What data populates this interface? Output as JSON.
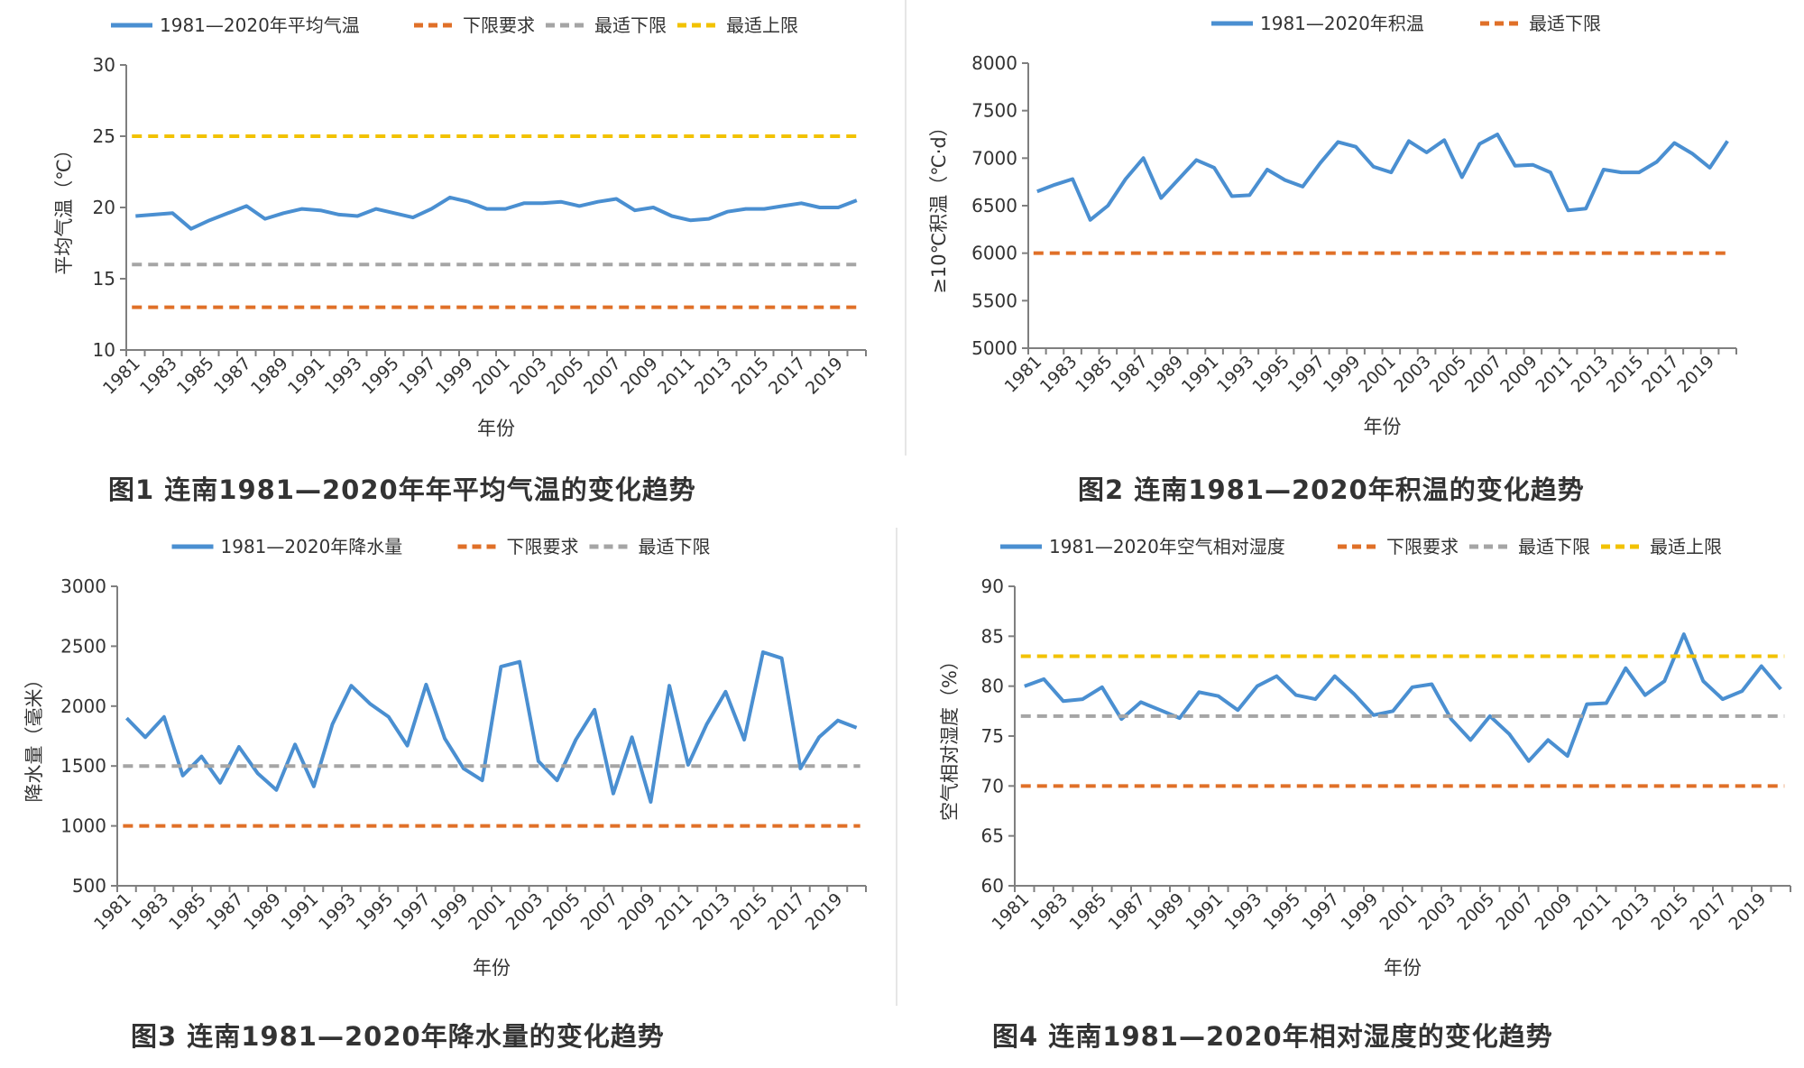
{
  "chart_data": [
    {
      "type": "line",
      "x": [
        "1981",
        "1982",
        "1983",
        "1984",
        "1985",
        "1986",
        "1987",
        "1988",
        "1989",
        "1990",
        "1991",
        "1992",
        "1993",
        "1994",
        "1995",
        "1996",
        "1997",
        "1998",
        "1999",
        "2000",
        "2001",
        "2002",
        "2003",
        "2004",
        "2005",
        "2006",
        "2007",
        "2008",
        "2009",
        "2010",
        "2011",
        "2012",
        "2013",
        "2014",
        "2015",
        "2016",
        "2017",
        "2018",
        "2019",
        "2020"
      ],
      "xticks": [
        "1981",
        "1983",
        "1985",
        "1987",
        "1989",
        "1991",
        "1993",
        "1995",
        "1997",
        "1999",
        "2001",
        "2003",
        "2005",
        "2007",
        "2009",
        "2011",
        "2013",
        "2015",
        "2017",
        "2019"
      ],
      "series": [
        {
          "name": "1981—2020年平均气温",
          "color": "#4a8fd1",
          "dashed": false,
          "values": [
            19.4,
            19.5,
            19.6,
            18.5,
            19.1,
            19.6,
            20.1,
            19.2,
            19.6,
            19.9,
            19.8,
            19.5,
            19.4,
            19.9,
            19.6,
            19.3,
            19.9,
            20.7,
            20.4,
            19.9,
            19.9,
            20.3,
            20.3,
            20.4,
            20.1,
            20.4,
            20.6,
            19.8,
            20.0,
            19.4,
            19.1,
            19.2,
            19.7,
            19.9,
            19.9,
            20.1,
            20.3,
            20.0,
            20.0,
            20.5
          ]
        },
        {
          "name": "下限要求",
          "color": "#e07028",
          "dashed": true,
          "constant": 13
        },
        {
          "name": "最适下限",
          "color": "#a5a5a5",
          "dashed": true,
          "constant": 16
        },
        {
          "name": "最适上限",
          "color": "#f2c200",
          "dashed": true,
          "constant": 25
        }
      ],
      "xlabel": "年份",
      "ylabel": "平均气温（℃）",
      "ylim": [
        10,
        30
      ],
      "yticks": [
        10,
        15,
        20,
        25,
        30
      ],
      "legend": "top",
      "grid": false,
      "caption": "图1  连南1981—2020年年平均气温的变化趋势"
    },
    {
      "type": "line",
      "x": [
        "1981",
        "1982",
        "1983",
        "1984",
        "1985",
        "1986",
        "1987",
        "1988",
        "1989",
        "1990",
        "1991",
        "1992",
        "1993",
        "1994",
        "1995",
        "1996",
        "1997",
        "1998",
        "1999",
        "2000",
        "2001",
        "2002",
        "2003",
        "2004",
        "2005",
        "2006",
        "2007",
        "2008",
        "2009",
        "2010",
        "2011",
        "2012",
        "2013",
        "2014",
        "2015",
        "2016",
        "2017",
        "2018",
        "2019",
        "2020"
      ],
      "xticks": [
        "1981",
        "1983",
        "1985",
        "1987",
        "1989",
        "1991",
        "1993",
        "1995",
        "1997",
        "1999",
        "2001",
        "2003",
        "2005",
        "2007",
        "2009",
        "2011",
        "2013",
        "2015",
        "2017",
        "2019"
      ],
      "series": [
        {
          "name": "1981—2020年积温",
          "color": "#4a8fd1",
          "dashed": false,
          "values": [
            6650,
            6720,
            6780,
            6350,
            6500,
            6780,
            7000,
            6580,
            6780,
            6980,
            6900,
            6600,
            6610,
            6880,
            6770,
            6700,
            6950,
            7170,
            7120,
            6910,
            6850,
            7180,
            7060,
            7190,
            6800,
            7150,
            7250,
            6920,
            6930,
            6850,
            6450,
            6470,
            6880,
            6850,
            6850,
            6960,
            7160,
            7050,
            6900,
            7180
          ]
        },
        {
          "name": "最适下限",
          "color": "#e07028",
          "dashed": true,
          "constant": 6000
        }
      ],
      "xlabel": "年份",
      "ylabel": "≥10℃积温（℃·d）",
      "ylim": [
        5000,
        8000
      ],
      "yticks": [
        5000,
        5500,
        6000,
        6500,
        7000,
        7500,
        8000
      ],
      "legend": "top",
      "grid": false,
      "caption": "图2  连南1981—2020年积温的变化趋势"
    },
    {
      "type": "line",
      "x": [
        "1981",
        "1982",
        "1983",
        "1984",
        "1985",
        "1986",
        "1987",
        "1988",
        "1989",
        "1990",
        "1991",
        "1992",
        "1993",
        "1994",
        "1995",
        "1996",
        "1997",
        "1998",
        "1999",
        "2000",
        "2001",
        "2002",
        "2003",
        "2004",
        "2005",
        "2006",
        "2007",
        "2008",
        "2009",
        "2010",
        "2011",
        "2012",
        "2013",
        "2014",
        "2015",
        "2016",
        "2017",
        "2018",
        "2019",
        "2020"
      ],
      "xticks": [
        "1981",
        "1983",
        "1985",
        "1987",
        "1989",
        "1991",
        "1993",
        "1995",
        "1997",
        "1999",
        "2001",
        "2003",
        "2005",
        "2007",
        "2009",
        "2011",
        "2013",
        "2015",
        "2017",
        "2019"
      ],
      "series": [
        {
          "name": "1981—2020年降水量",
          "color": "#4a8fd1",
          "dashed": false,
          "values": [
            1900,
            1740,
            1910,
            1420,
            1580,
            1360,
            1660,
            1440,
            1300,
            1680,
            1330,
            1850,
            2170,
            2020,
            1910,
            1670,
            2180,
            1730,
            1480,
            1380,
            2330,
            2370,
            1540,
            1380,
            1720,
            1970,
            1270,
            1740,
            1200,
            2170,
            1510,
            1850,
            2120,
            1720,
            2450,
            2400,
            1480,
            1740,
            1880,
            1820
          ]
        },
        {
          "name": "下限要求",
          "color": "#e07028",
          "dashed": true,
          "constant": 1000
        },
        {
          "name": "最适下限",
          "color": "#a5a5a5",
          "dashed": true,
          "constant": 1500
        }
      ],
      "xlabel": "年份",
      "ylabel": "降水量（毫米）",
      "ylim": [
        500,
        3000
      ],
      "yticks": [
        500,
        1000,
        1500,
        2000,
        2500,
        3000
      ],
      "legend": "top",
      "grid": false,
      "caption": "图3  连南1981—2020年降水量的变化趋势"
    },
    {
      "type": "line",
      "x": [
        "1981",
        "1982",
        "1983",
        "1984",
        "1985",
        "1986",
        "1987",
        "1988",
        "1989",
        "1990",
        "1991",
        "1992",
        "1993",
        "1994",
        "1995",
        "1996",
        "1997",
        "1998",
        "1999",
        "2000",
        "2001",
        "2002",
        "2003",
        "2004",
        "2005",
        "2006",
        "2007",
        "2008",
        "2009",
        "2010",
        "2011",
        "2012",
        "2013",
        "2014",
        "2015",
        "2016",
        "2017",
        "2018",
        "2019",
        "2020"
      ],
      "xticks": [
        "1981",
        "1983",
        "1985",
        "1987",
        "1989",
        "1991",
        "1993",
        "1995",
        "1997",
        "1999",
        "2001",
        "2003",
        "2005",
        "2007",
        "2009",
        "2011",
        "2013",
        "2015",
        "2017",
        "2019"
      ],
      "series": [
        {
          "name": "1981—2020年空气相对湿度",
          "color": "#4a8fd1",
          "dashed": false,
          "values": [
            80.0,
            80.7,
            78.5,
            78.7,
            79.9,
            76.7,
            78.4,
            77.6,
            76.8,
            79.4,
            79.0,
            77.6,
            80.0,
            81.0,
            79.1,
            78.7,
            81.0,
            79.2,
            77.1,
            77.5,
            79.9,
            80.2,
            76.7,
            74.6,
            77.0,
            75.2,
            72.5,
            74.6,
            73.0,
            78.2,
            78.3,
            81.8,
            79.1,
            80.5,
            85.2,
            80.5,
            78.7,
            79.5,
            82.0,
            79.7
          ]
        },
        {
          "name": "下限要求",
          "color": "#e07028",
          "dashed": true,
          "constant": 70
        },
        {
          "name": "最适下限",
          "color": "#a5a5a5",
          "dashed": true,
          "constant": 77
        },
        {
          "name": "最适上限",
          "color": "#f2c200",
          "dashed": true,
          "constant": 83
        }
      ],
      "xlabel": "年份",
      "ylabel": "空气相对湿度（%）",
      "ylim": [
        60,
        90
      ],
      "yticks": [
        60,
        65,
        70,
        75,
        80,
        85,
        90
      ],
      "legend": "top",
      "grid": false,
      "caption": "图4  连南1981—2020年相对湿度的变化趋势"
    }
  ]
}
